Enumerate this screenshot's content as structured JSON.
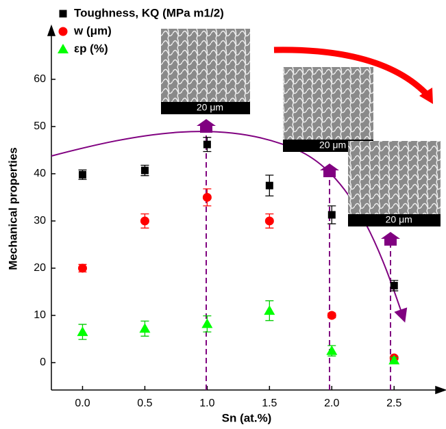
{
  "chart_data": {
    "type": "scatter",
    "x_label": "Sn (at.%)",
    "y_label": "Mechanical properties",
    "x": [
      0.0,
      0.5,
      1.0,
      1.5,
      2.0,
      2.5
    ],
    "xlim": [
      -0.25,
      2.9
    ],
    "xticks": [
      {
        "value": 0,
        "label": "0.0"
      },
      {
        "value": 0.5,
        "label": "0.5"
      },
      {
        "value": 1,
        "label": "1.0"
      },
      {
        "value": 1.5,
        "label": "1.5"
      },
      {
        "value": 2,
        "label": "2.0"
      },
      {
        "value": 2.5,
        "label": "2.5"
      }
    ],
    "ylim": [
      -5.8,
      71
    ],
    "yticks": [
      0,
      10,
      20,
      30,
      40,
      50,
      60
    ],
    "series": [
      {
        "name": "Toughness, KQ (MPa m1/2)",
        "color": "#000000",
        "marker": "square",
        "values": [
          39.8,
          40.7,
          46.2,
          37.5,
          31.3,
          16.3
        ],
        "errors": [
          1,
          1.1,
          1.5,
          2.2,
          1.9,
          1.1
        ]
      },
      {
        "name": "w (μm)",
        "color": "#ff0000",
        "marker": "circle",
        "values": [
          20,
          30,
          35,
          30,
          10,
          1
        ],
        "errors": [
          0.8,
          1.5,
          1.8,
          1.5,
          0.5,
          0.3
        ]
      },
      {
        "name": "εp (%)",
        "color": "#00ff00",
        "marker": "triangle",
        "values": [
          6.5,
          7.2,
          8.2,
          11,
          2.5,
          0.5
        ],
        "errors": [
          1.6,
          1.6,
          1.7,
          2.1,
          1.1,
          0.6
        ]
      }
    ],
    "insets": [
      {
        "scale": "20 μm"
      },
      {
        "scale": "20 μm"
      },
      {
        "scale": "20 μm"
      }
    ]
  }
}
